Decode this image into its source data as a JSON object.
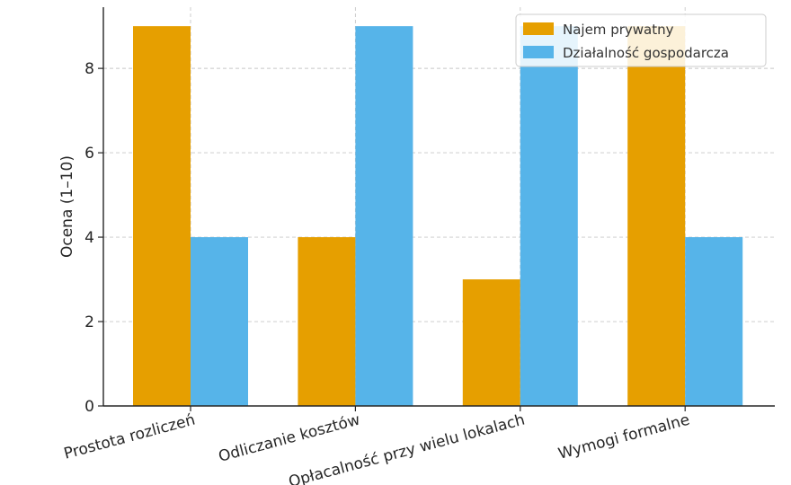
{
  "chart_data": {
    "type": "bar",
    "title": "",
    "xlabel": "",
    "ylabel": "Ocena (1–10)",
    "categories": [
      "Prostota rozliczeń",
      "Odliczanie kosztów",
      "Opłacalność przy wielu lokalach",
      "Wymogi formalne"
    ],
    "series": [
      {
        "name": "Najem prywatny",
        "color": "#E69F00",
        "values": [
          9,
          4,
          3,
          9
        ]
      },
      {
        "name": "Działalność gospodarcza",
        "color": "#56B4E9",
        "values": [
          4,
          9,
          9,
          4
        ]
      }
    ],
    "ylim": [
      0,
      9.45
    ],
    "yticks": [
      0,
      2,
      4,
      6,
      8
    ],
    "grid": true,
    "legend_position": "top-right"
  }
}
